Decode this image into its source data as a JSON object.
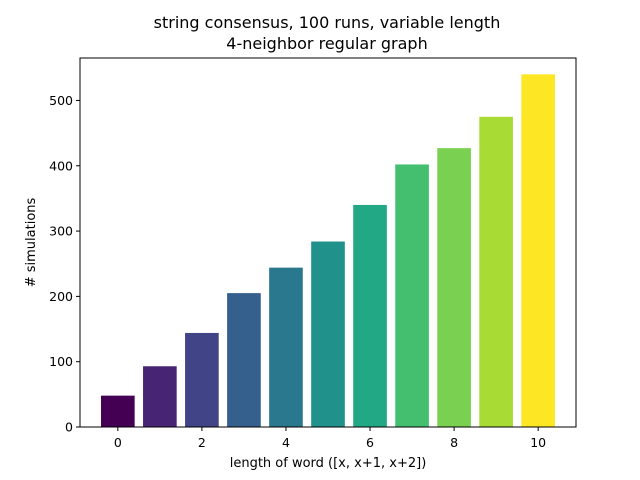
{
  "chart_data": {
    "type": "bar",
    "title_lines": [
      "string consensus, 100 runs, variable length",
      "4-neighbor regular graph"
    ],
    "xlabel": "length of word ([x, x+1, x+2])",
    "ylabel": "# simulations",
    "categories": [
      0,
      1,
      2,
      3,
      4,
      5,
      6,
      7,
      8,
      9,
      10
    ],
    "values": [
      48,
      93,
      144,
      205,
      244,
      284,
      340,
      402,
      427,
      475,
      540
    ],
    "colors": [
      "#440154",
      "#482475",
      "#414487",
      "#355f8d",
      "#2a788e",
      "#21918c",
      "#22a884",
      "#44bf70",
      "#7ad151",
      "#a8db34",
      "#fde725"
    ],
    "xlim": [
      -0.9,
      10.9
    ],
    "ylim": [
      0,
      565
    ],
    "xticks": [
      0,
      2,
      4,
      6,
      8,
      10
    ],
    "yticks": [
      0,
      100,
      200,
      300,
      400,
      500
    ],
    "grid": false,
    "legend": "none"
  }
}
